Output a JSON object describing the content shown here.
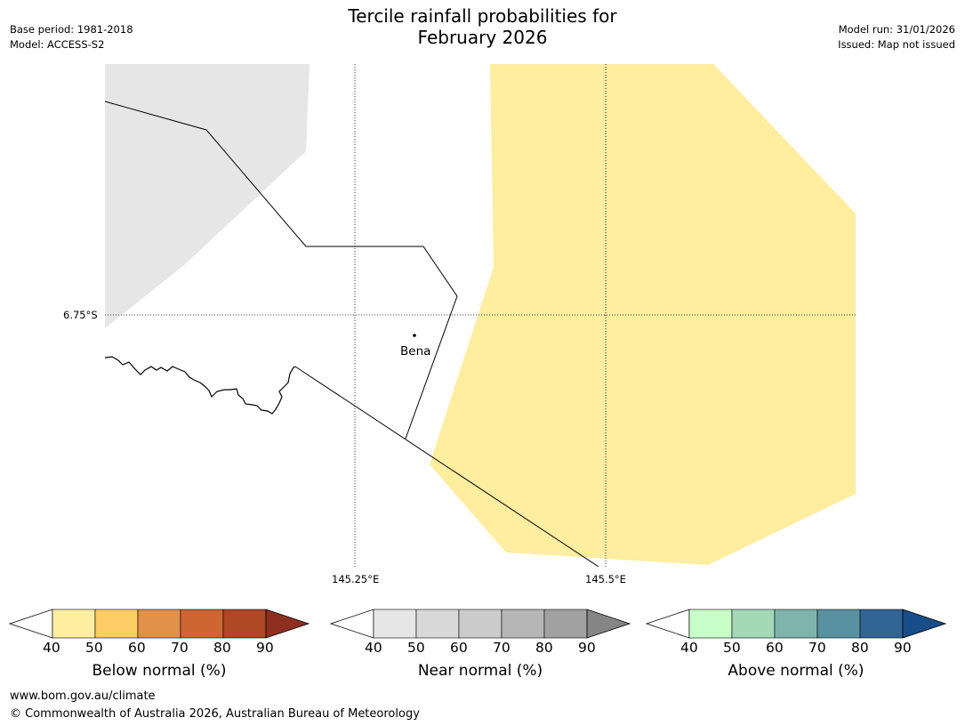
{
  "title_line1": "Tercile rainfall probabilities for",
  "title_line2": "February 2026",
  "meta": {
    "base_period": "Base period: 1981-2018",
    "model": "Model: ACCESS-S2",
    "model_run": "Model run: 31/01/2026",
    "issued": "Issued: Map not issued"
  },
  "map": {
    "lat_label": "6.75°S",
    "lon_labels": [
      "145.25°E",
      "145.5°E"
    ],
    "place": "Bena"
  },
  "colorbars": [
    {
      "name": "below",
      "title": "Below normal (%)",
      "ticks": [
        "40",
        "50",
        "60",
        "70",
        "80",
        "90"
      ],
      "colors": [
        "#ffeda0",
        "#fecc65",
        "#e1914a",
        "#cd6633",
        "#ae4825",
        "#8e2f1f"
      ]
    },
    {
      "name": "near",
      "title": "Near normal (%)",
      "ticks": [
        "40",
        "50",
        "60",
        "70",
        "80",
        "90"
      ],
      "colors": [
        "#e6e6e6",
        "#d8d8d8",
        "#cbcbcb",
        "#b6b6b6",
        "#a1a1a1",
        "#858585"
      ]
    },
    {
      "name": "above",
      "title": "Above normal (%)",
      "ticks": [
        "40",
        "50",
        "60",
        "70",
        "80",
        "90"
      ],
      "colors": [
        "#c8fec8",
        "#a3d9b7",
        "#7fb4ad",
        "#5a91a1",
        "#326496",
        "#184d8a"
      ]
    }
  ],
  "footer": {
    "url": "www.bom.gov.au/climate",
    "copyright": "© Commonwealth of Australia 2026, Australian Bureau of Meteorology"
  }
}
